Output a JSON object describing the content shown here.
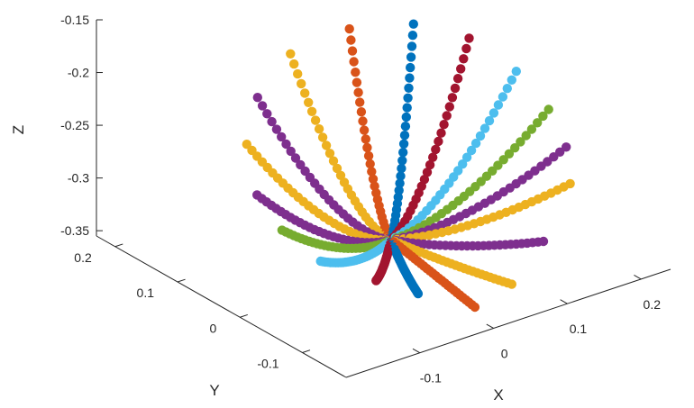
{
  "chart_data": {
    "type": "scatter3d",
    "title": "",
    "xlabel": "X",
    "ylabel": "Y",
    "zlabel": "Z",
    "xlim": [
      -0.2,
      0.24
    ],
    "ylim": [
      -0.17,
      0.23
    ],
    "zlim": [
      -0.355,
      -0.15
    ],
    "xticks": [
      -0.1,
      0,
      0.1,
      0.2
    ],
    "yticks": [
      -0.1,
      0,
      0.1,
      0.2
    ],
    "zticks": [
      -0.35,
      -0.3,
      -0.25,
      -0.2,
      -0.15
    ],
    "xtick_labels": [
      "-0.1",
      "0",
      "0.1",
      "0.2"
    ],
    "ytick_labels": [
      "-0.1",
      "0",
      "0.1",
      "0.2"
    ],
    "ztick_labels": [
      "-0.35",
      "-0.3",
      "-0.25",
      "-0.2",
      "-0.15"
    ],
    "grid": false,
    "center": [
      0.03,
      0.03,
      -0.345
    ],
    "points_per_series": 28,
    "series": [
      {
        "color": "#4DBEEE",
        "end": [
          -0.15,
          -0.07,
          -0.29
        ]
      },
      {
        "color": "#77AC30",
        "end": [
          -0.16,
          -0.02,
          -0.275
        ]
      },
      {
        "color": "#7E2F8E",
        "end": [
          -0.16,
          0.02,
          -0.255
        ]
      },
      {
        "color": "#EDB120",
        "end": [
          -0.14,
          0.06,
          -0.225
        ]
      },
      {
        "color": "#7E2F8E",
        "end": [
          -0.1,
          0.09,
          -0.2
        ]
      },
      {
        "color": "#EDB120",
        "end": [
          -0.03,
          0.12,
          -0.185
        ]
      },
      {
        "color": "#D95319",
        "end": [
          0.05,
          0.12,
          -0.18
        ]
      },
      {
        "color": "#0072BD",
        "end": [
          0.12,
          0.1,
          -0.185
        ]
      },
      {
        "color": "#A2142F",
        "end": [
          0.17,
          0.07,
          -0.2
        ]
      },
      {
        "color": "#4DBEEE",
        "end": [
          0.2,
          0.03,
          -0.225
        ]
      },
      {
        "color": "#77AC30",
        "end": [
          0.21,
          -0.01,
          -0.25
        ]
      },
      {
        "color": "#7E2F8E",
        "end": [
          0.2,
          -0.05,
          -0.27
        ]
      },
      {
        "color": "#EDB120",
        "end": [
          0.18,
          -0.08,
          -0.29
        ]
      },
      {
        "color": "#7E2F8E",
        "end": [
          0.11,
          -0.12,
          -0.315
        ]
      },
      {
        "color": "#EDB120",
        "end": [
          0.05,
          -0.14,
          -0.335
        ]
      },
      {
        "color": "#D95319",
        "end": [
          0.0,
          -0.14,
          -0.345
        ]
      },
      {
        "color": "#0072BD",
        "end": [
          -0.06,
          -0.12,
          -0.325
        ]
      },
      {
        "color": "#A2142F",
        "end": [
          -0.1,
          -0.1,
          -0.31
        ]
      }
    ]
  }
}
